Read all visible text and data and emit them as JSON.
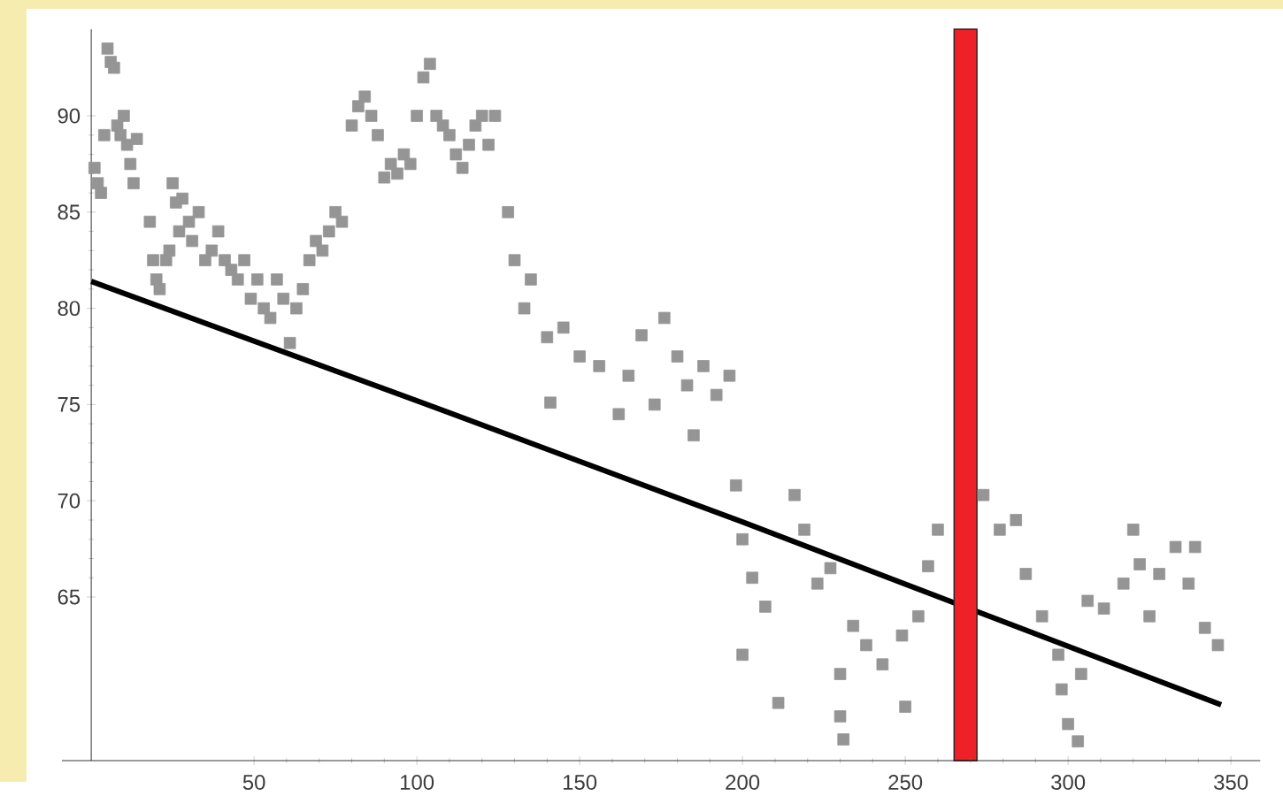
{
  "chart_data": {
    "type": "scatter",
    "xlim": [
      -9,
      359
    ],
    "ylim": [
      56.5,
      94.5
    ],
    "xticks": [
      50,
      100,
      150,
      200,
      250,
      300,
      350
    ],
    "yticks": [
      65,
      70,
      75,
      80,
      85,
      90
    ],
    "grid": false,
    "bands": [
      {
        "axis": "x",
        "from": 265,
        "to": 272,
        "color": "#ee2028"
      }
    ],
    "series": [
      {
        "marker": "square",
        "color": "#959595",
        "x": [
          1,
          2,
          3,
          4,
          5,
          6,
          7,
          8,
          9,
          10,
          11,
          12,
          13,
          14,
          18,
          19,
          20,
          21,
          23,
          24,
          25,
          26,
          27,
          28,
          30,
          31,
          33,
          35,
          37,
          39,
          41,
          43,
          45,
          47,
          49,
          51,
          53,
          55,
          57,
          59,
          61,
          63,
          65,
          67,
          69,
          71,
          73,
          75,
          77,
          80,
          82,
          84,
          86,
          88,
          90,
          92,
          94,
          96,
          98,
          100,
          102,
          104,
          106,
          108,
          110,
          112,
          114,
          116,
          118,
          120,
          122,
          124,
          128,
          130,
          133,
          135,
          140,
          141,
          145,
          150,
          156,
          162,
          165,
          169,
          173,
          176,
          180,
          183,
          185,
          188,
          192,
          196,
          198,
          200,
          200,
          203,
          207,
          211,
          216,
          219,
          223,
          227,
          230,
          230,
          231,
          234,
          238,
          243,
          249,
          250,
          254,
          257,
          260,
          274,
          279,
          284,
          287,
          292,
          297,
          298,
          300,
          303,
          304,
          306,
          311,
          317,
          320,
          322,
          325,
          328,
          333,
          337,
          339,
          342,
          346
        ],
        "values": [
          87.3,
          86.5,
          86,
          89,
          93.5,
          92.8,
          92.5,
          89.5,
          89,
          90,
          88.5,
          87.5,
          86.5,
          88.8,
          84.5,
          82.5,
          81.5,
          81,
          82.5,
          83,
          86.5,
          85.5,
          84,
          85.7,
          84.5,
          83.5,
          85,
          82.5,
          83,
          84,
          82.5,
          82,
          81.5,
          82.5,
          80.5,
          81.5,
          80,
          79.5,
          81.5,
          80.5,
          78.2,
          80,
          81,
          82.5,
          83.5,
          83,
          84,
          85,
          84.5,
          89.5,
          90.5,
          91,
          90,
          89,
          86.8,
          87.5,
          87,
          88,
          87.5,
          90,
          92,
          92.7,
          90,
          89.5,
          89,
          88,
          87.3,
          88.5,
          89.5,
          90,
          88.5,
          90,
          85,
          82.5,
          80,
          81.5,
          78.5,
          75.1,
          79,
          77.5,
          77,
          74.5,
          76.5,
          78.6,
          75,
          79.5,
          77.5,
          76,
          73.4,
          77,
          75.5,
          76.5,
          70.8,
          68,
          62,
          66,
          64.5,
          59.5,
          70.3,
          68.5,
          65.7,
          66.5,
          61,
          58.8,
          57.6,
          63.5,
          62.5,
          61.5,
          63,
          59.3,
          64,
          66.6,
          68.5,
          70.3,
          68.5,
          69,
          66.2,
          64,
          62,
          60.2,
          58.4,
          57.5,
          61,
          64.8,
          64.4,
          65.7,
          68.5,
          66.7,
          64,
          66.2,
          67.6,
          65.7,
          67.6,
          63.4,
          62.5
        ]
      },
      {
        "type": "line",
        "marker": "none",
        "color": "#000000",
        "x": [
          0,
          100,
          200,
          347
        ],
        "values": [
          81.4,
          75.2,
          68.9,
          59.4
        ]
      }
    ]
  }
}
